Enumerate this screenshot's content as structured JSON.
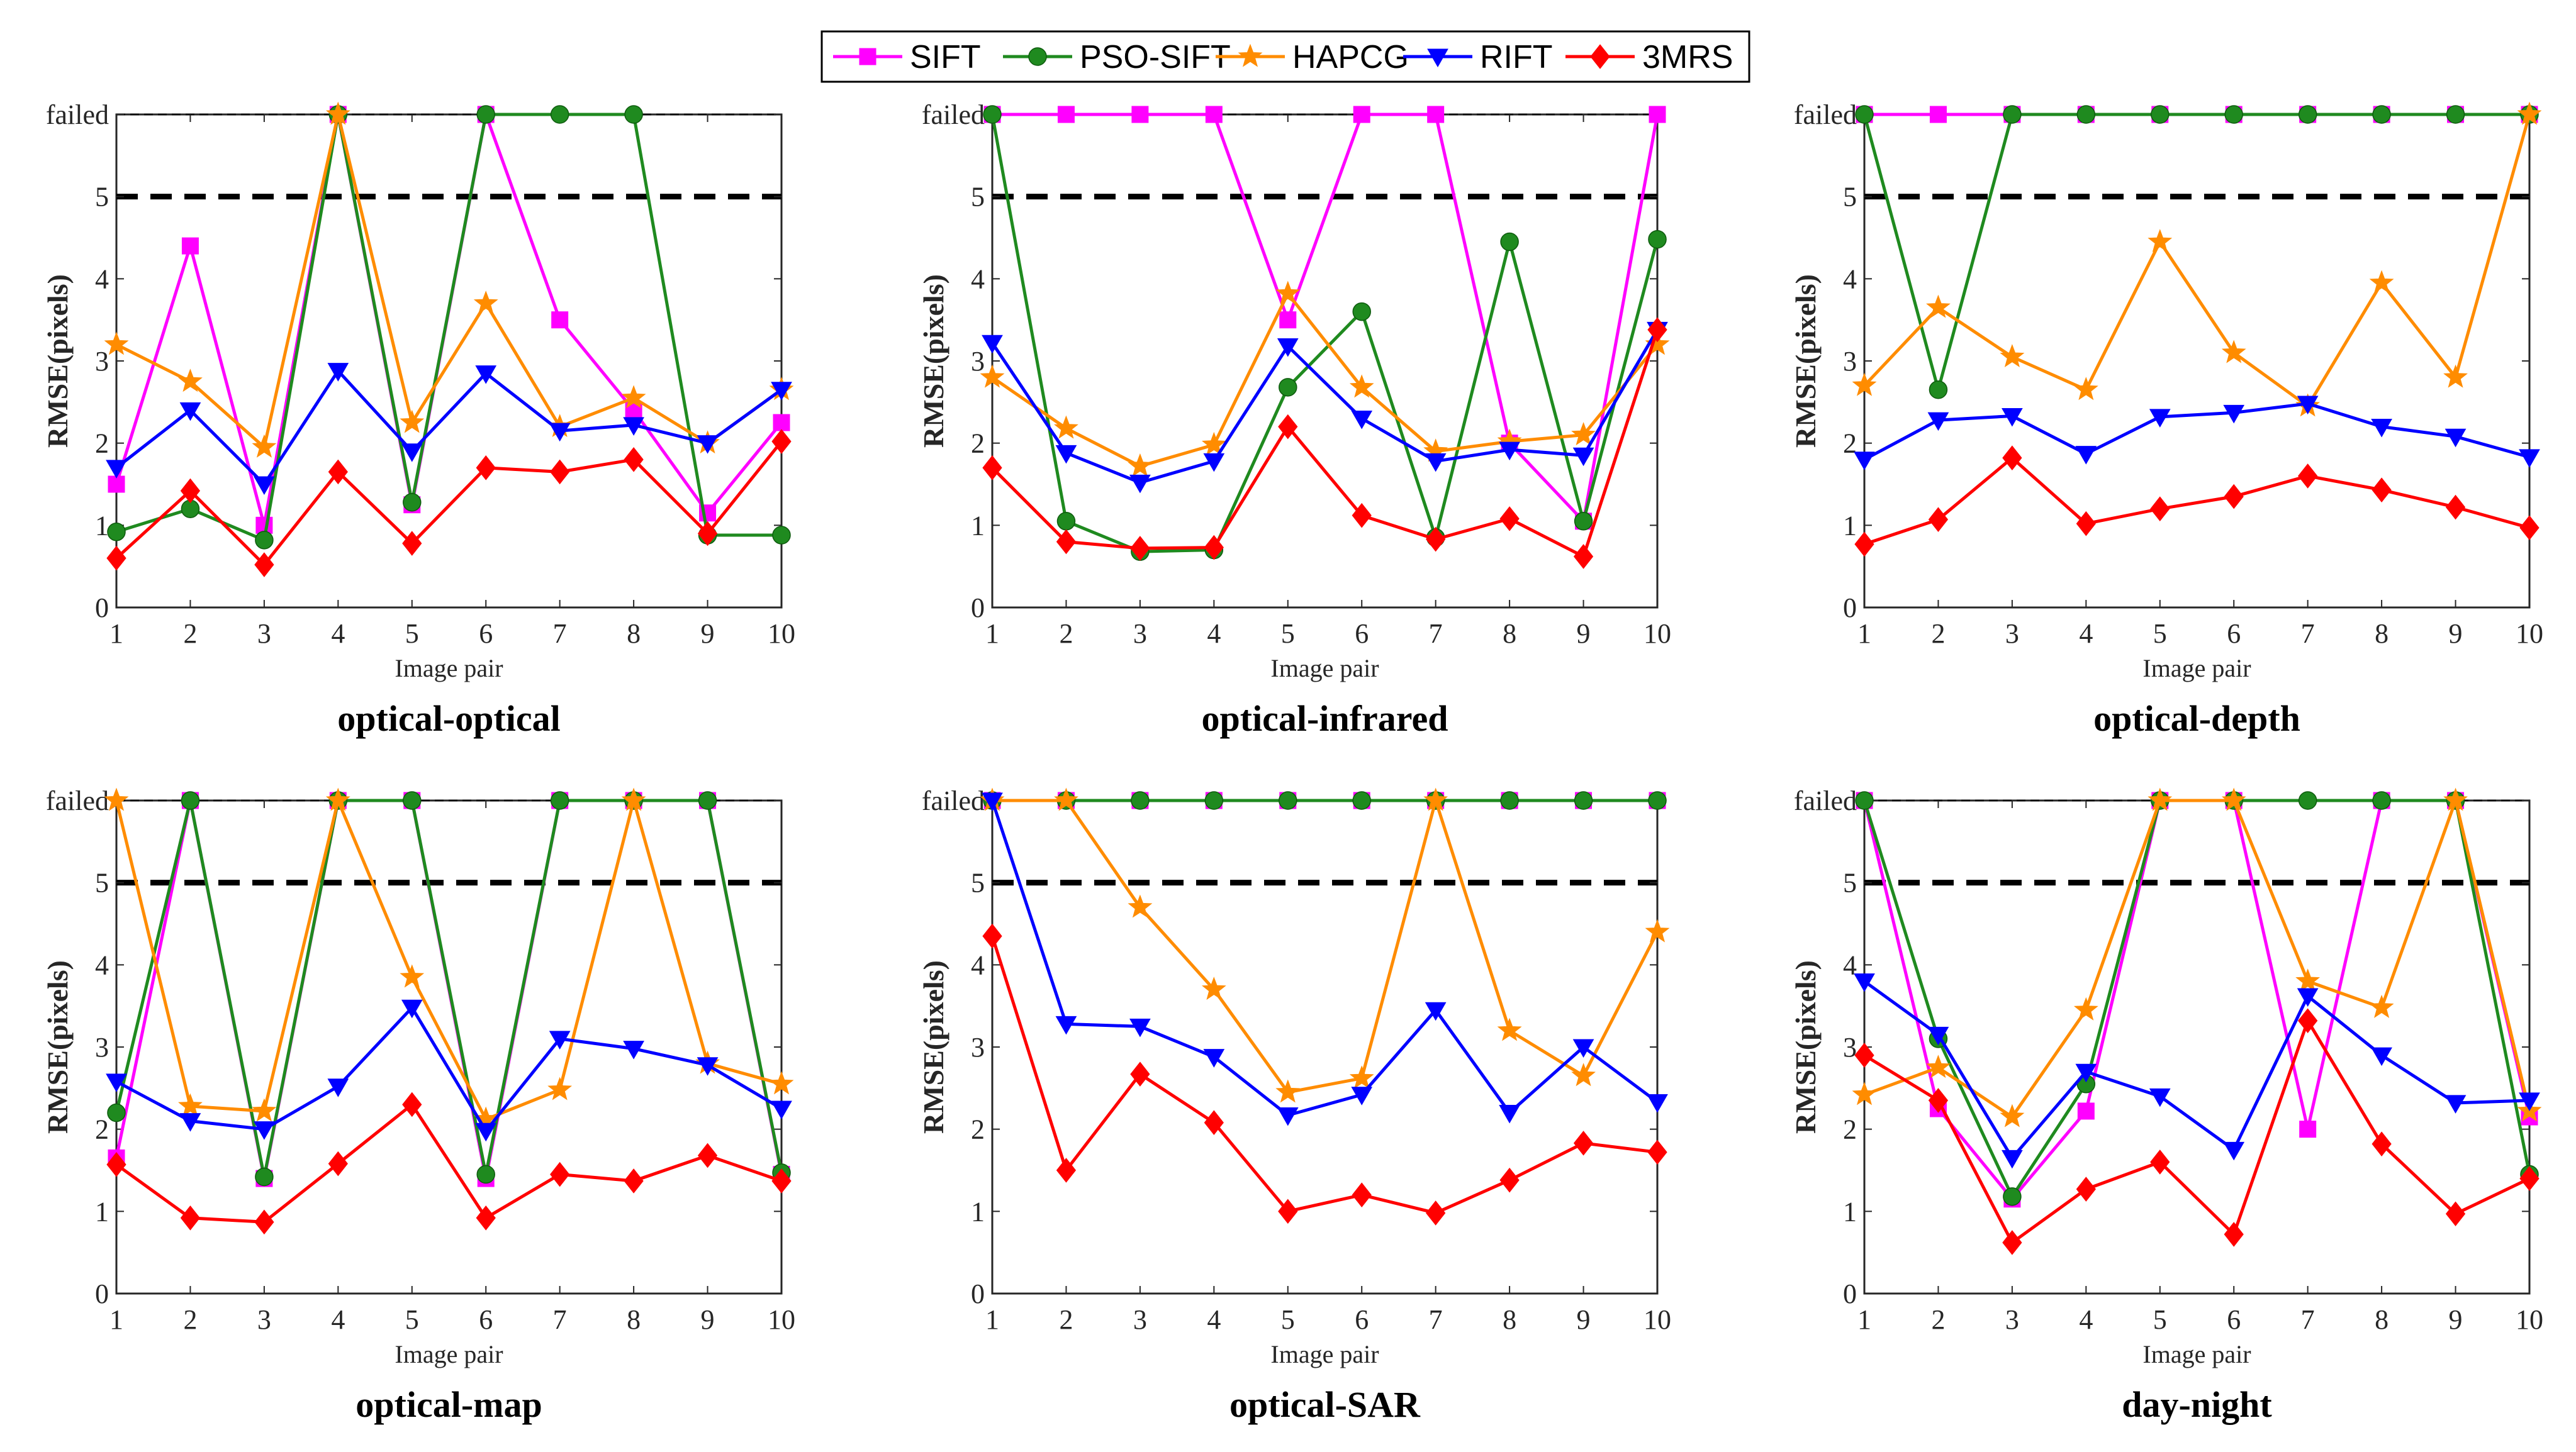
{
  "figure": {
    "y_tick_labels": [
      "0",
      "1",
      "2",
      "3",
      "4",
      "5",
      "failed"
    ],
    "x_tick_labels": [
      "1",
      "2",
      "3",
      "4",
      "5",
      "6",
      "7",
      "8",
      "9",
      "10"
    ],
    "xlabel": "Image pair",
    "ylabel": "RMSE(pixels)",
    "threshold_value": 5,
    "failed_plot_value": 6
  },
  "legend": {
    "placement": "top-center",
    "entries": [
      {
        "name": "SIFT",
        "color": "#FF00FF",
        "marker": "square"
      },
      {
        "name": "PSO-SIFT",
        "color": "#1F8A1F",
        "marker": "circle"
      },
      {
        "name": "HAPCG",
        "color": "#FF8C00",
        "marker": "star"
      },
      {
        "name": "RIFT",
        "color": "#0000FF",
        "marker": "triangle-down"
      },
      {
        "name": "3MRS",
        "color": "#FF0000",
        "marker": "diamond"
      }
    ]
  },
  "chart_data": [
    {
      "type": "line",
      "title": "optical-optical",
      "xlabel": "Image pair",
      "ylabel": "RMSE(pixels)",
      "categories": [
        1,
        2,
        3,
        4,
        5,
        6,
        7,
        8,
        9,
        10
      ],
      "ylim": [
        0,
        6
      ],
      "series": [
        {
          "name": "SIFT",
          "values": [
            1.5,
            4.4,
            1.0,
            6,
            1.25,
            6,
            3.5,
            2.4,
            1.15,
            2.25
          ]
        },
        {
          "name": "PSO-SIFT",
          "values": [
            0.92,
            1.2,
            0.82,
            6,
            1.28,
            6,
            6,
            6,
            0.88,
            0.88
          ]
        },
        {
          "name": "HAPCG",
          "values": [
            3.2,
            2.75,
            1.95,
            6,
            2.25,
            3.7,
            2.2,
            2.55,
            2.0,
            2.65
          ]
        },
        {
          "name": "RIFT",
          "values": [
            1.7,
            2.4,
            1.5,
            2.88,
            1.9,
            2.85,
            2.15,
            2.22,
            2.0,
            2.65
          ]
        },
        {
          "name": "3MRS",
          "values": [
            0.6,
            1.42,
            0.52,
            1.65,
            0.78,
            1.7,
            1.65,
            1.8,
            0.9,
            2.02
          ]
        }
      ]
    },
    {
      "type": "line",
      "title": "optical-infrared",
      "xlabel": "Image pair",
      "ylabel": "RMSE(pixels)",
      "categories": [
        1,
        2,
        3,
        4,
        5,
        6,
        7,
        8,
        9,
        10
      ],
      "ylim": [
        0,
        6
      ],
      "series": [
        {
          "name": "SIFT",
          "values": [
            6,
            6,
            6,
            6,
            3.5,
            6,
            6,
            2.0,
            1.05,
            6
          ]
        },
        {
          "name": "PSO-SIFT",
          "values": [
            6,
            1.05,
            0.68,
            0.7,
            2.68,
            3.6,
            0.85,
            4.45,
            1.05,
            4.48
          ]
        },
        {
          "name": "HAPCG",
          "values": [
            2.8,
            2.18,
            1.72,
            1.98,
            3.82,
            2.68,
            1.9,
            2.02,
            2.1,
            3.2
          ]
        },
        {
          "name": "RIFT",
          "values": [
            3.22,
            1.88,
            1.52,
            1.78,
            3.18,
            2.3,
            1.78,
            1.92,
            1.85,
            3.38
          ]
        },
        {
          "name": "3MRS",
          "values": [
            1.7,
            0.8,
            0.72,
            0.73,
            2.2,
            1.12,
            0.83,
            1.08,
            0.62,
            3.38
          ]
        }
      ]
    },
    {
      "type": "line",
      "title": "optical-depth",
      "xlabel": "Image pair",
      "ylabel": "RMSE(pixels)",
      "categories": [
        1,
        2,
        3,
        4,
        5,
        6,
        7,
        8,
        9,
        10
      ],
      "ylim": [
        0,
        6
      ],
      "series": [
        {
          "name": "SIFT",
          "values": [
            6,
            6,
            6,
            6,
            6,
            6,
            6,
            6,
            6,
            6
          ]
        },
        {
          "name": "PSO-SIFT",
          "values": [
            6,
            2.65,
            6,
            6,
            6,
            6,
            6,
            6,
            6,
            6
          ]
        },
        {
          "name": "HAPCG",
          "values": [
            2.7,
            3.65,
            3.05,
            2.65,
            4.45,
            3.1,
            2.45,
            3.95,
            2.8,
            6
          ]
        },
        {
          "name": "RIFT",
          "values": [
            1.8,
            2.28,
            2.33,
            1.87,
            2.32,
            2.37,
            2.48,
            2.2,
            2.08,
            1.83
          ]
        },
        {
          "name": "3MRS",
          "values": [
            0.77,
            1.07,
            1.82,
            1.02,
            1.2,
            1.35,
            1.6,
            1.43,
            1.22,
            0.97
          ]
        }
      ]
    },
    {
      "type": "line",
      "title": "optical-map",
      "xlabel": "Image pair",
      "ylabel": "RMSE(pixels)",
      "categories": [
        1,
        2,
        3,
        4,
        5,
        6,
        7,
        8,
        9,
        10
      ],
      "ylim": [
        0,
        6
      ],
      "series": [
        {
          "name": "SIFT",
          "values": [
            1.65,
            6,
            1.4,
            6,
            6,
            1.4,
            6,
            6,
            6,
            1.45
          ]
        },
        {
          "name": "PSO-SIFT",
          "values": [
            2.2,
            6,
            1.42,
            6,
            6,
            1.45,
            6,
            6,
            6,
            1.47
          ]
        },
        {
          "name": "HAPCG",
          "values": [
            6,
            2.28,
            2.22,
            6,
            3.85,
            2.12,
            2.48,
            6,
            2.8,
            2.55
          ]
        },
        {
          "name": "RIFT",
          "values": [
            2.58,
            2.1,
            2.0,
            2.52,
            3.48,
            1.98,
            3.1,
            2.98,
            2.78,
            2.25
          ]
        },
        {
          "name": "3MRS",
          "values": [
            1.57,
            0.92,
            0.87,
            1.58,
            2.3,
            0.92,
            1.45,
            1.37,
            1.68,
            1.37
          ]
        }
      ]
    },
    {
      "type": "line",
      "title": "optical-SAR",
      "xlabel": "Image pair",
      "ylabel": "RMSE(pixels)",
      "categories": [
        1,
        2,
        3,
        4,
        5,
        6,
        7,
        8,
        9,
        10
      ],
      "ylim": [
        0,
        6
      ],
      "series": [
        {
          "name": "SIFT",
          "values": [
            6,
            6,
            6,
            6,
            6,
            6,
            6,
            6,
            6,
            6
          ]
        },
        {
          "name": "PSO-SIFT",
          "values": [
            6,
            6,
            6,
            6,
            6,
            6,
            6,
            6,
            6,
            6
          ]
        },
        {
          "name": "HAPCG",
          "values": [
            6,
            6,
            4.7,
            3.7,
            2.45,
            2.62,
            6,
            3.2,
            2.65,
            4.4
          ]
        },
        {
          "name": "RIFT",
          "values": [
            6,
            3.28,
            3.25,
            2.88,
            2.17,
            2.42,
            3.45,
            2.2,
            3.0,
            2.33
          ]
        },
        {
          "name": "3MRS",
          "values": [
            4.35,
            1.5,
            2.67,
            2.08,
            1.0,
            1.2,
            0.98,
            1.38,
            1.83,
            1.72
          ]
        }
      ]
    },
    {
      "type": "line",
      "title": "day-night",
      "xlabel": "Image pair",
      "ylabel": "RMSE(pixels)",
      "categories": [
        1,
        2,
        3,
        4,
        5,
        6,
        7,
        8,
        9,
        10
      ],
      "ylim": [
        0,
        6
      ],
      "series": [
        {
          "name": "SIFT",
          "values": [
            6,
            2.25,
            1.15,
            2.22,
            6,
            6,
            2.0,
            6,
            6,
            2.15
          ]
        },
        {
          "name": "PSO-SIFT",
          "values": [
            6,
            3.1,
            1.18,
            2.55,
            6,
            6,
            6,
            6,
            6,
            1.45
          ]
        },
        {
          "name": "HAPCG",
          "values": [
            2.42,
            2.75,
            2.15,
            3.45,
            6,
            6,
            3.8,
            3.48,
            6,
            2.22
          ]
        },
        {
          "name": "RIFT",
          "values": [
            3.8,
            3.15,
            1.65,
            2.7,
            2.4,
            1.75,
            3.62,
            2.9,
            2.32,
            2.35
          ]
        },
        {
          "name": "3MRS",
          "values": [
            2.9,
            2.35,
            0.62,
            1.27,
            1.6,
            0.72,
            3.32,
            1.82,
            0.97,
            1.4
          ]
        }
      ]
    }
  ]
}
